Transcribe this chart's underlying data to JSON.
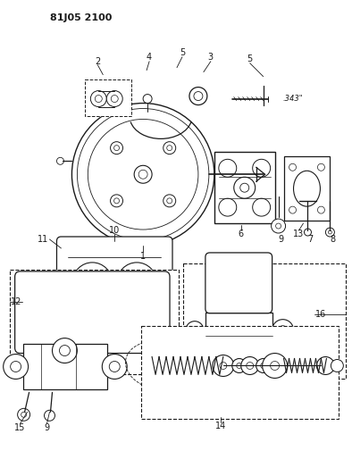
{
  "title": "81J05 2100",
  "bg_color": "#ffffff",
  "lc": "#1a1a1a",
  "fig_width": 3.94,
  "fig_height": 5.33,
  "dpi": 100,
  "note_343": ".343\""
}
